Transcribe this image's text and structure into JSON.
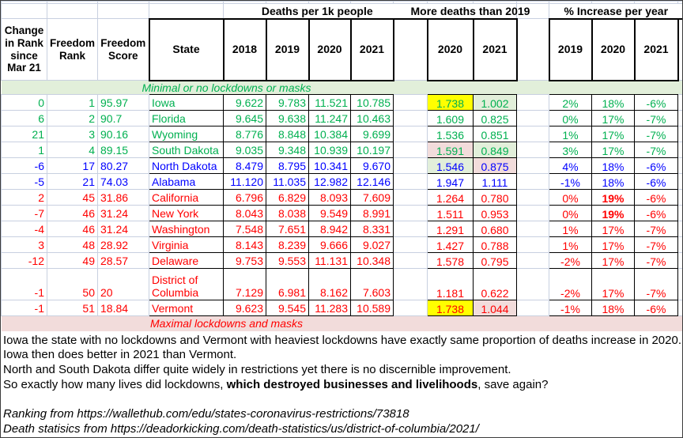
{
  "table": {
    "top_headers": {
      "deaths": "Deaths per 1k people",
      "more": "More deaths than 2019",
      "pct": "% Increase per year"
    },
    "col_headers": {
      "change": "Change in Rank since Mar 21",
      "rank": "Freedom Rank",
      "score": "Freedom Score",
      "state": "State",
      "deaths_years": [
        "2018",
        "2019",
        "2020",
        "2021"
      ],
      "more_years": [
        "2020",
        "2021"
      ],
      "pct_years": [
        "2019",
        "2020",
        "2021"
      ]
    },
    "bands": {
      "minimal": "Minimal or no lockdowns or masks",
      "maximal": "Maximal lockdowns and masks"
    },
    "rows": [
      {
        "change": "0",
        "rank": "1",
        "score": "95.97",
        "state": "Iowa",
        "deaths": [
          "9.622",
          "9.783",
          "11.521",
          "10.785"
        ],
        "more": [
          "1.738",
          "1.002"
        ],
        "more_fill": [
          "yellow",
          "green"
        ],
        "pct": [
          "2%",
          "18%",
          "-6%"
        ],
        "pct_bold": [
          false,
          false,
          false
        ],
        "color": "green",
        "tall": false
      },
      {
        "change": "6",
        "rank": "2",
        "score": "90.7",
        "state": "Florida",
        "deaths": [
          "9.645",
          "9.638",
          "11.247",
          "10.463"
        ],
        "more": [
          "1.609",
          "0.825"
        ],
        "more_fill": [
          null,
          null
        ],
        "pct": [
          "0%",
          "17%",
          "-7%"
        ],
        "pct_bold": [
          false,
          false,
          false
        ],
        "color": "green",
        "tall": false
      },
      {
        "change": "21",
        "rank": "3",
        "score": "90.16",
        "state": "Wyoming",
        "deaths": [
          "8.776",
          "8.848",
          "10.384",
          "9.699"
        ],
        "more": [
          "1.536",
          "0.851"
        ],
        "more_fill": [
          null,
          null
        ],
        "pct": [
          "1%",
          "17%",
          "-7%"
        ],
        "pct_bold": [
          false,
          false,
          false
        ],
        "color": "green",
        "tall": false
      },
      {
        "change": "1",
        "rank": "4",
        "score": "89.15",
        "state": "South Dakota",
        "deaths": [
          "9.035",
          "9.348",
          "10.939",
          "10.197"
        ],
        "more": [
          "1.591",
          "0.849"
        ],
        "more_fill": [
          "pink",
          "green"
        ],
        "pct": [
          "3%",
          "17%",
          "-7%"
        ],
        "pct_bold": [
          false,
          false,
          false
        ],
        "color": "green",
        "tall": false
      },
      {
        "change": "-6",
        "rank": "17",
        "score": "80.27",
        "state": "North Dakota",
        "deaths": [
          "8.479",
          "8.795",
          "10.341",
          "9.670"
        ],
        "more": [
          "1.546",
          "0.875"
        ],
        "more_fill": [
          "green",
          "pink"
        ],
        "pct": [
          "4%",
          "18%",
          "-6%"
        ],
        "pct_bold": [
          false,
          false,
          false
        ],
        "color": "blue",
        "tall": false
      },
      {
        "change": "-5",
        "rank": "21",
        "score": "74.03",
        "state": "Alabama",
        "deaths": [
          "11.120",
          "11.035",
          "12.982",
          "12.146"
        ],
        "more": [
          "1.947",
          "1.111"
        ],
        "more_fill": [
          null,
          null
        ],
        "pct": [
          "-1%",
          "18%",
          "-6%"
        ],
        "pct_bold": [
          false,
          false,
          false
        ],
        "color": "blue",
        "tall": false
      },
      {
        "change": "2",
        "rank": "45",
        "score": "31.86",
        "state": "California",
        "deaths": [
          "6.796",
          "6.829",
          "8.093",
          "7.609"
        ],
        "more": [
          "1.264",
          "0.780"
        ],
        "more_fill": [
          null,
          null
        ],
        "pct": [
          "0%",
          "19%",
          "-6%"
        ],
        "pct_bold": [
          false,
          true,
          false
        ],
        "color": "red",
        "tall": false
      },
      {
        "change": "-7",
        "rank": "46",
        "score": "31.24",
        "state": "New York",
        "deaths": [
          "8.043",
          "8.038",
          "9.549",
          "8.991"
        ],
        "more": [
          "1.511",
          "0.953"
        ],
        "more_fill": [
          null,
          null
        ],
        "pct": [
          "0%",
          "19%",
          "-6%"
        ],
        "pct_bold": [
          false,
          true,
          false
        ],
        "color": "red",
        "tall": false
      },
      {
        "change": "-4",
        "rank": "46",
        "score": "31.24",
        "state": "Washington",
        "deaths": [
          "7.548",
          "7.651",
          "8.942",
          "8.331"
        ],
        "more": [
          "1.291",
          "0.680"
        ],
        "more_fill": [
          null,
          null
        ],
        "pct": [
          "1%",
          "17%",
          "-7%"
        ],
        "pct_bold": [
          false,
          false,
          false
        ],
        "color": "red",
        "tall": false
      },
      {
        "change": "3",
        "rank": "48",
        "score": "28.92",
        "state": "Virginia",
        "deaths": [
          "8.143",
          "8.239",
          "9.666",
          "9.027"
        ],
        "more": [
          "1.427",
          "0.788"
        ],
        "more_fill": [
          null,
          null
        ],
        "pct": [
          "1%",
          "17%",
          "-7%"
        ],
        "pct_bold": [
          false,
          false,
          false
        ],
        "color": "red",
        "tall": false
      },
      {
        "change": "-12",
        "rank": "49",
        "score": "28.57",
        "state": "Delaware",
        "deaths": [
          "9.753",
          "9.553",
          "11.131",
          "10.348"
        ],
        "more": [
          "1.578",
          "0.795"
        ],
        "more_fill": [
          null,
          null
        ],
        "pct": [
          "-2%",
          "17%",
          "-7%"
        ],
        "pct_bold": [
          false,
          false,
          false
        ],
        "color": "red",
        "tall": false
      },
      {
        "change": "-1",
        "rank": "50",
        "score": "20",
        "state": "District of Columbia",
        "deaths": [
          "7.129",
          "6.981",
          "8.162",
          "7.603"
        ],
        "more": [
          "1.181",
          "0.622"
        ],
        "more_fill": [
          null,
          null
        ],
        "pct": [
          "-2%",
          "17%",
          "-7%"
        ],
        "pct_bold": [
          false,
          false,
          false
        ],
        "color": "red",
        "tall": true
      },
      {
        "change": "-1",
        "rank": "51",
        "score": "18.84",
        "state": "Vermont",
        "deaths": [
          "9.623",
          "9.545",
          "11.283",
          "10.589"
        ],
        "more": [
          "1.738",
          "1.044"
        ],
        "more_fill": [
          "yellow",
          "pink"
        ],
        "pct": [
          "-1%",
          "18%",
          "-6%"
        ],
        "pct_bold": [
          false,
          false,
          false
        ],
        "color": "red",
        "tall": false
      }
    ]
  },
  "notes": [
    {
      "segments": [
        {
          "text": "Iowa the state with no lockdowns and Vermont with heaviest lockdowns have exactly same proportion of deaths increase in 2020.",
          "bold": false
        }
      ]
    },
    {
      "segments": [
        {
          "text": "Iowa then does better in 2021 than Vermont.",
          "bold": false
        }
      ]
    },
    {
      "segments": [
        {
          "text": "North and South Dakota differ quite widely in restrictions yet there is no discernible improvement.",
          "bold": false
        }
      ]
    },
    {
      "segments": [
        {
          "text": "So exactly how many lives did lockdowns, ",
          "bold": false
        },
        {
          "text": "which destroyed businesses and livelihoods",
          "bold": true
        },
        {
          "text": ", save again?",
          "bold": false
        }
      ]
    }
  ],
  "sources": [
    "Ranking from https://wallethub.com/edu/states-coronavirus-restrictions/73818",
    "Death statisics from https://deadorkicking.com/death-statistics/us/district-of-columbia/2021/"
  ],
  "colors": {
    "text_green": "#00B050",
    "text_blue": "#0000FF",
    "text_red": "#FF0000",
    "highlight_yellow": "#FFFF00",
    "fill_light_green": "#E2EFDA",
    "fill_light_pink": "#F2DCDB",
    "gridline": "#C8D0E0"
  }
}
